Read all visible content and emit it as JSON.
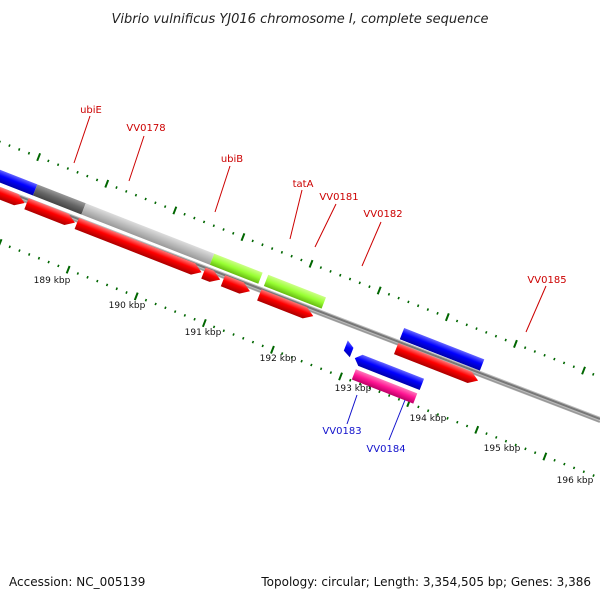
{
  "title": "Vibrio vulnificus YJ016 chromosome I, complete sequence",
  "footer": {
    "accession": "Accession: NC_005139",
    "topology": "Topology: circular; Length: 3,354,505 bp; Genes: 3,386"
  },
  "kbp_labels": [
    "189 kbp",
    "190 kbp",
    "191 kbp",
    "192 kbp",
    "193 kbp",
    "194 kbp",
    "195 kbp",
    "196 kbp"
  ],
  "gene_labels": [
    {
      "text": "ubiE",
      "strand": "forward"
    },
    {
      "text": "VV0178",
      "strand": "forward"
    },
    {
      "text": "ubiB",
      "strand": "forward"
    },
    {
      "text": "tatA",
      "strand": "forward"
    },
    {
      "text": "VV0181",
      "strand": "forward"
    },
    {
      "text": "VV0182",
      "strand": "forward"
    },
    {
      "text": "VV0185",
      "strand": "forward"
    },
    {
      "text": "VV0183",
      "strand": "reverse"
    },
    {
      "text": "VV0184",
      "strand": "reverse"
    }
  ],
  "colors": {
    "gene_label_forward": "#cc0000",
    "gene_label_reverse": "#1111cc",
    "cds": "#ff0000",
    "gene_blue": "#0000ff",
    "gene_gray_dark": "#666666",
    "gene_gray_light": "#bbbbbb",
    "gene_green": "#99ff33",
    "gene_pink": "#ff1493",
    "backbone": "#888888",
    "tick": "#006600"
  }
}
